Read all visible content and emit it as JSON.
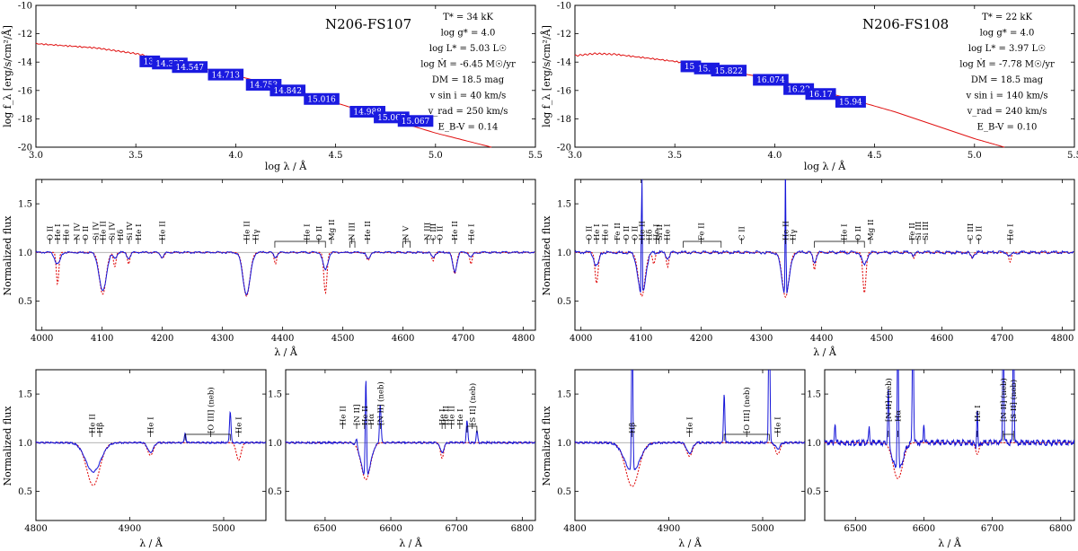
{
  "chart_data": [
    {
      "id": "sed_left",
      "type": "line",
      "star": "N206-FS107",
      "xlabel": "log λ / Å",
      "ylabel": "log f_λ  [erg/s/cm²/Å]",
      "xlim": [
        3.0,
        5.5
      ],
      "ylim": [
        -20,
        -10
      ],
      "xticks": [
        "3.0",
        "3.5",
        "4.0",
        "4.5",
        "5.0",
        "5.5"
      ],
      "yticks": [
        "-10",
        "-12",
        "-14",
        "-16",
        "-18",
        "-20"
      ],
      "sed_curve": [
        [
          3.0,
          -12.7
        ],
        [
          3.3,
          -13.0
        ],
        [
          3.5,
          -13.4
        ],
        [
          3.7,
          -14.0
        ],
        [
          4.0,
          -14.95
        ],
        [
          4.3,
          -16.0
        ],
        [
          4.6,
          -17.3
        ],
        [
          5.0,
          -19.0
        ],
        [
          5.28,
          -20.0
        ]
      ],
      "photometry": [
        {
          "label": "13.",
          "x": 3.57,
          "y": -13.95
        },
        {
          "label": "14.327",
          "x": 3.67,
          "y": -14.1
        },
        {
          "label": "14.547",
          "x": 3.77,
          "y": -14.35
        },
        {
          "label": "14.713",
          "x": 3.95,
          "y": -14.88
        },
        {
          "label": "14.753",
          "x": 4.14,
          "y": -15.6
        },
        {
          "label": "14.842",
          "x": 4.26,
          "y": -16.0
        },
        {
          "label": "15.016",
          "x": 4.43,
          "y": -16.6
        },
        {
          "label": "14.988",
          "x": 4.66,
          "y": -17.5
        },
        {
          "label": "15.067",
          "x": 4.78,
          "y": -17.9
        },
        {
          "label": "15.067",
          "x": 4.9,
          "y": -18.15
        }
      ],
      "params": [
        "T* = 34 kK",
        "log g* = 4.0",
        "log L* = 5.03 L☉",
        "log Ṁ = -6.45 M☉/yr",
        "DM = 18.5 mag",
        "v sin i = 40 km/s",
        "v_rad = 250 km/s",
        "E_B-V = 0.14"
      ]
    },
    {
      "id": "sed_right",
      "type": "line",
      "star": "N206-FS108",
      "xlabel": "log λ / Å",
      "ylabel": "log f_λ  [erg/s/cm²/Å]",
      "xlim": [
        3.0,
        5.5
      ],
      "ylim": [
        -20,
        -10
      ],
      "xticks": [
        "3.0",
        "3.5",
        "4.0",
        "4.5",
        "5.0",
        "5.5"
      ],
      "yticks": [
        "-10",
        "-12",
        "-14",
        "-16",
        "-18",
        "-20"
      ],
      "sed_curve": [
        [
          3.0,
          -13.55
        ],
        [
          3.1,
          -13.4
        ],
        [
          3.2,
          -13.45
        ],
        [
          3.5,
          -13.95
        ],
        [
          3.8,
          -14.7
        ],
        [
          4.0,
          -15.25
        ],
        [
          4.3,
          -16.3
        ],
        [
          4.6,
          -17.5
        ],
        [
          5.0,
          -19.4
        ],
        [
          5.15,
          -20.0
        ]
      ],
      "photometry": [
        {
          "label": "15.",
          "x": 3.58,
          "y": -14.3
        },
        {
          "label": "15.5",
          "x": 3.66,
          "y": -14.45
        },
        {
          "label": "15.822",
          "x": 3.77,
          "y": -14.6
        },
        {
          "label": "16.074",
          "x": 3.98,
          "y": -15.25
        },
        {
          "label": "16.22",
          "x": 4.12,
          "y": -15.9
        },
        {
          "label": "16.17",
          "x": 4.23,
          "y": -16.25
        },
        {
          "label": "15.94",
          "x": 4.38,
          "y": -16.8
        }
      ],
      "params": [
        "T* = 22 kK",
        "log g* = 4.0",
        "log L* = 3.97 L☉",
        "log Ṁ = -7.78 M☉/yr",
        "DM = 18.5 mag",
        "v sin i = 140 km/s",
        "v_rad = 240 km/s",
        "E_B-V = 0.10"
      ]
    },
    {
      "id": "blue_left",
      "type": "line",
      "xlabel": "λ / Å",
      "ylabel": "Normalized flux",
      "xlim": [
        3990,
        4820
      ],
      "ylim": [
        0.2,
        1.75
      ],
      "xticks": [
        "4000",
        "4100",
        "4200",
        "4300",
        "4400",
        "4500",
        "4600",
        "4700",
        "4800"
      ],
      "yticks": [
        "0.5",
        "1.0",
        "1.5"
      ],
      "lines_obs": [
        [
          4026,
          0.12,
          4.5
        ],
        [
          4101,
          0.4,
          6
        ],
        [
          4121,
          0.06,
          3
        ],
        [
          4144,
          0.06,
          3
        ],
        [
          4200,
          0.05,
          3
        ],
        [
          4340,
          0.43,
          6
        ],
        [
          4388,
          0.05,
          3
        ],
        [
          4471,
          0.18,
          4
        ],
        [
          4542,
          0.07,
          3
        ],
        [
          4650,
          0.05,
          3
        ],
        [
          4686,
          0.2,
          3.5
        ],
        [
          4713,
          0.05,
          3
        ]
      ],
      "lines_mod": [
        [
          4026,
          0.33,
          2
        ],
        [
          4101,
          0.43,
          5.5
        ],
        [
          4121,
          0.15,
          2
        ],
        [
          4144,
          0.12,
          2
        ],
        [
          4200,
          0.06,
          3
        ],
        [
          4340,
          0.45,
          5.5
        ],
        [
          4388,
          0.12,
          2
        ],
        [
          4471,
          0.42,
          2.5
        ],
        [
          4542,
          0.08,
          3
        ],
        [
          4650,
          0.09,
          2
        ],
        [
          4686,
          0.22,
          3
        ],
        [
          4713,
          0.12,
          2
        ]
      ],
      "line_ids": [
        {
          "x": 4013,
          "label": "O II"
        },
        {
          "x": 4026,
          "label": "He I"
        },
        {
          "x": 4040,
          "label": "He I"
        },
        {
          "x": 4058,
          "label": "N IV"
        },
        {
          "x": 4072,
          "label": "O II"
        },
        {
          "x": 4089,
          "label": "Si IV"
        },
        {
          "x": 4101,
          "label": "He II"
        },
        {
          "x": 4116,
          "label": "Si IV"
        },
        {
          "x": 4130,
          "label": "Hδ"
        },
        {
          "x": 4145,
          "label": "Si IV"
        },
        {
          "x": 4160,
          "label": "He I"
        },
        {
          "x": 4200,
          "label": "He II"
        },
        {
          "x": 4340,
          "label": "He II"
        },
        {
          "x": 4355,
          "label": "Hγ"
        },
        {
          "x": 4440,
          "label": "He I"
        },
        {
          "x": 4460,
          "label": "O II"
        },
        {
          "x": 4481,
          "label": "Mg II"
        },
        {
          "x": 4515,
          "label": "N III"
        },
        {
          "x": 4541,
          "label": "He II"
        },
        {
          "x": 4604,
          "label": "N V"
        },
        {
          "x": 4640,
          "label": "N III"
        },
        {
          "x": 4650,
          "label": "C III"
        },
        {
          "x": 4661,
          "label": "O II"
        },
        {
          "x": 4686,
          "label": "He II"
        },
        {
          "x": 4713,
          "label": "He I"
        }
      ]
    },
    {
      "id": "blue_right",
      "type": "line",
      "xlabel": "λ / Å",
      "ylabel": "Normalized flux",
      "xlim": [
        3990,
        4820
      ],
      "ylim": [
        0.2,
        1.75
      ],
      "xticks": [
        "4000",
        "4100",
        "4200",
        "4300",
        "4400",
        "4500",
        "4600",
        "4700",
        "4800"
      ],
      "yticks": [
        "0.5",
        "1.0",
        "1.5"
      ],
      "lines_obs": [
        [
          4026,
          0.14,
          4
        ],
        [
          4101,
          0.45,
          6
        ],
        [
          4144,
          0.06,
          3
        ],
        [
          4340,
          0.45,
          6
        ],
        [
          4388,
          0.1,
          3
        ],
        [
          4471,
          0.13,
          4
        ],
        [
          4553,
          0.04,
          2
        ],
        [
          4650,
          0.05,
          3
        ],
        [
          4713,
          0.04,
          3
        ]
      ],
      "lines_mod": [
        [
          4026,
          0.32,
          2.5
        ],
        [
          4101,
          0.45,
          5.5
        ],
        [
          4121,
          0.12,
          2
        ],
        [
          4144,
          0.15,
          2
        ],
        [
          4340,
          0.46,
          5.5
        ],
        [
          4388,
          0.18,
          2
        ],
        [
          4471,
          0.42,
          2.5
        ],
        [
          4553,
          0.06,
          2
        ],
        [
          4650,
          0.06,
          2
        ],
        [
          4713,
          0.1,
          2
        ]
      ],
      "emission_spikes": [
        4101,
        4340
      ],
      "line_ids": [
        {
          "x": 4013,
          "label": "O II"
        },
        {
          "x": 4026,
          "label": "He I"
        },
        {
          "x": 4040,
          "label": "He I"
        },
        {
          "x": 4060,
          "label": "Fe II"
        },
        {
          "x": 4075,
          "label": "O II"
        },
        {
          "x": 4089,
          "label": "O II"
        },
        {
          "x": 4101,
          "label": "He II"
        },
        {
          "x": 4113,
          "label": "Hδ"
        },
        {
          "x": 4125,
          "label": "He I"
        },
        {
          "x": 4130,
          "label": "Si II"
        },
        {
          "x": 4143,
          "label": "He I"
        },
        {
          "x": 4200,
          "label": "Fe II"
        },
        {
          "x": 4267,
          "label": "C II"
        },
        {
          "x": 4340,
          "label": "He II"
        },
        {
          "x": 4352,
          "label": "Hγ"
        },
        {
          "x": 4437,
          "label": "He I"
        },
        {
          "x": 4460,
          "label": "O II"
        },
        {
          "x": 4481,
          "label": "Mg II"
        },
        {
          "x": 4550,
          "label": "Fe II"
        },
        {
          "x": 4560,
          "label": "Si III"
        },
        {
          "x": 4572,
          "label": "Si III"
        },
        {
          "x": 4647,
          "label": "C III"
        },
        {
          "x": 4661,
          "label": "O II"
        },
        {
          "x": 4713,
          "label": "He I"
        }
      ]
    },
    {
      "id": "hb_left",
      "type": "line",
      "xlabel": "λ / Å",
      "ylabel": "Normalized flux",
      "xlim": [
        4800,
        5045
      ],
      "ylim": [
        0.2,
        1.75
      ],
      "xticks": [
        "4800",
        "4900",
        "5000"
      ],
      "yticks": [
        "0.5",
        "1.0",
        "1.5"
      ],
      "lines_obs": [
        [
          4861,
          0.3,
          8
        ],
        [
          4922,
          0.1,
          3
        ]
      ],
      "lines_mod": [
        [
          4861,
          0.44,
          7
        ],
        [
          4922,
          0.13,
          3
        ],
        [
          5016,
          0.18,
          2.5
        ]
      ],
      "line_ids": [
        {
          "x": 4860,
          "label": "He II"
        },
        {
          "x": 4868,
          "label": "Hβ"
        },
        {
          "x": 4922,
          "label": "He I"
        },
        {
          "x": 4986,
          "label": "[O III] (neb)"
        },
        {
          "x": 5016,
          "label": "He I"
        }
      ]
    },
    {
      "id": "ha_left",
      "type": "line",
      "xlabel": "λ / Å",
      "ylabel": "",
      "xlim": [
        6440,
        6820
      ],
      "ylim": [
        0.2,
        1.75
      ],
      "xticks": [
        "6500",
        "6600",
        "6700",
        "6800"
      ],
      "yticks": [
        "0.5",
        "1.0",
        "1.5"
      ],
      "lines_obs": [
        [
          6562,
          0.36,
          7
        ],
        [
          6678,
          0.1,
          3
        ]
      ],
      "lines_mod": [
        [
          6562,
          0.38,
          7
        ],
        [
          6678,
          0.16,
          2.5
        ]
      ],
      "line_ids": [
        {
          "x": 6527,
          "label": "He II"
        },
        {
          "x": 6548,
          "label": "[N II]"
        },
        {
          "x": 6560,
          "label": "He II"
        },
        {
          "x": 6570,
          "label": "Hα"
        },
        {
          "x": 6584,
          "label": "[N II] (neb)"
        },
        {
          "x": 6678,
          "label": "He I"
        },
        {
          "x": 6683,
          "label": "He II"
        },
        {
          "x": 6692,
          "label": "He II"
        },
        {
          "x": 6705,
          "label": "He I"
        },
        {
          "x": 6724,
          "label": "[S II] (neb)"
        }
      ]
    },
    {
      "id": "hb_right",
      "type": "line",
      "xlabel": "λ / Å",
      "ylabel": "Normalized flux",
      "xlim": [
        4800,
        5045
      ],
      "ylim": [
        0.2,
        1.75
      ],
      "xticks": [
        "4800",
        "4900",
        "5000"
      ],
      "yticks": [
        "0.5",
        "1.0",
        "1.5"
      ],
      "lines_obs": [
        [
          4861,
          0.3,
          8
        ],
        [
          4922,
          0.11,
          3
        ],
        [
          5016,
          0.06,
          2.5
        ]
      ],
      "lines_mod": [
        [
          4861,
          0.45,
          7
        ],
        [
          4922,
          0.14,
          3
        ],
        [
          5016,
          0.12,
          2.5
        ]
      ],
      "line_ids": [
        {
          "x": 4861,
          "label": "Hβ"
        },
        {
          "x": 4922,
          "label": "He I"
        },
        {
          "x": 4983,
          "label": "[O III] (neb)"
        },
        {
          "x": 5016,
          "label": "He I"
        }
      ]
    },
    {
      "id": "ha_right",
      "type": "line",
      "xlabel": "λ / Å",
      "ylabel": "",
      "xlim": [
        6455,
        6820
      ],
      "ylim": [
        0.2,
        1.75
      ],
      "xticks": [
        "6500",
        "6600",
        "6700",
        "6800"
      ],
      "yticks": [
        "0.5",
        "1.0",
        "1.5"
      ],
      "lines_obs": [
        [
          6562,
          0.3,
          7
        ],
        [
          6678,
          0.06,
          3
        ]
      ],
      "lines_mod": [
        [
          6562,
          0.37,
          7
        ],
        [
          6678,
          0.12,
          2.5
        ]
      ],
      "line_ids": [
        {
          "x": 6548,
          "label": "[N II] (neb)"
        },
        {
          "x": 6562,
          "label": "Hα"
        },
        {
          "x": 6678,
          "label": "He I"
        },
        {
          "x": 6716,
          "label": "[N II] (neb)"
        },
        {
          "x": 6731,
          "label": "[S II] (neb)"
        }
      ]
    }
  ]
}
